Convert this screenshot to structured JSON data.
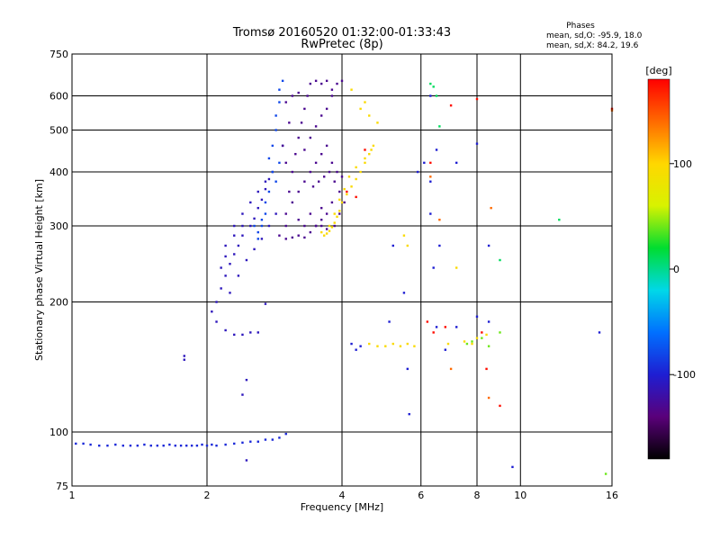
{
  "chart_data": {
    "type": "scatter",
    "title": "Tromsø 20160520 01:32:00-01:33:43",
    "subtitle": "RwPretec (8p)",
    "xlabel": "Frequency [MHz]",
    "ylabel": "Stationary phase Virtual Height [km]",
    "x_scale": "log",
    "y_scale": "log",
    "xlim": [
      1,
      16
    ],
    "ylim": [
      75,
      750
    ],
    "x_ticks": [
      1,
      2,
      4,
      6,
      8,
      10,
      16
    ],
    "y_ticks": [
      75,
      100,
      200,
      300,
      400,
      500,
      600,
      750
    ],
    "grid": true,
    "stats": {
      "heading": "Phases",
      "line_o": "mean, sd,O: -95.9, 18.0",
      "line_x": "mean, sd,X:  84.2, 19.6"
    },
    "colorbar": {
      "label": "[deg]",
      "range": [
        -180,
        180
      ],
      "ticks": [
        100,
        0,
        -100
      ],
      "tick_labels": [
        "100",
        "0",
        "-100"
      ]
    },
    "color_stops": [
      "#000000",
      "#5a007a",
      "#1e1ed2",
      "#0070ff",
      "#00d8e8",
      "#00dd30",
      "#d8f200",
      "#ffd700",
      "#ff6a00",
      "#ff0000"
    ],
    "series": [
      {
        "phase": -95,
        "points": [
          [
            1.02,
            94
          ],
          [
            1.06,
            94
          ],
          [
            1.1,
            93.5
          ],
          [
            1.15,
            93
          ],
          [
            1.2,
            93
          ],
          [
            1.25,
            93.5
          ],
          [
            1.3,
            93
          ],
          [
            1.35,
            93
          ],
          [
            1.4,
            93
          ],
          [
            1.45,
            93.5
          ],
          [
            1.5,
            93
          ],
          [
            1.55,
            93
          ],
          [
            1.6,
            93
          ],
          [
            1.65,
            93.5
          ],
          [
            1.7,
            93
          ],
          [
            1.75,
            93
          ],
          [
            1.8,
            93
          ],
          [
            1.85,
            93
          ],
          [
            1.9,
            93
          ],
          [
            1.95,
            93.5
          ],
          [
            2.0,
            93
          ],
          [
            2.05,
            93.5
          ],
          [
            2.1,
            93
          ],
          [
            2.2,
            93.5
          ],
          [
            2.3,
            94
          ],
          [
            2.4,
            94.5
          ],
          [
            2.5,
            95
          ],
          [
            2.6,
            95
          ],
          [
            2.7,
            96
          ],
          [
            2.8,
            96
          ],
          [
            2.9,
            97
          ],
          [
            3.0,
            99
          ]
        ]
      },
      {
        "phase": -110,
        "points": [
          [
            2.05,
            190
          ],
          [
            2.1,
            200
          ],
          [
            2.15,
            215
          ],
          [
            2.2,
            230
          ],
          [
            2.25,
            245
          ],
          [
            2.3,
            258
          ],
          [
            2.35,
            270
          ],
          [
            2.4,
            285
          ],
          [
            2.5,
            300
          ],
          [
            2.55,
            312
          ],
          [
            2.6,
            330
          ],
          [
            2.65,
            345
          ],
          [
            2.7,
            365
          ],
          [
            2.75,
            385
          ],
          [
            2.8,
            400
          ],
          [
            2.3,
            300
          ],
          [
            2.4,
            320
          ],
          [
            2.5,
            340
          ],
          [
            2.6,
            360
          ],
          [
            2.7,
            380
          ],
          [
            2.2,
            270
          ],
          [
            2.3,
            285
          ],
          [
            2.4,
            300
          ],
          [
            2.15,
            240
          ],
          [
            2.2,
            255
          ],
          [
            2.25,
            210
          ],
          [
            2.35,
            230
          ],
          [
            2.45,
            250
          ],
          [
            2.55,
            265
          ],
          [
            2.65,
            280
          ],
          [
            2.75,
            300
          ],
          [
            2.85,
            320
          ],
          [
            2.1,
            180
          ],
          [
            2.2,
            172
          ],
          [
            2.3,
            168
          ],
          [
            2.4,
            168
          ],
          [
            2.5,
            170
          ],
          [
            2.6,
            170
          ],
          [
            2.7,
            198
          ],
          [
            1.78,
            150
          ],
          [
            1.78,
            147
          ],
          [
            2.45,
            132
          ],
          [
            2.4,
            122
          ],
          [
            2.45,
            86
          ]
        ]
      },
      {
        "phase": -80,
        "points": [
          [
            2.75,
            430
          ],
          [
            2.8,
            460
          ],
          [
            2.85,
            500
          ],
          [
            2.85,
            540
          ],
          [
            2.9,
            580
          ],
          [
            2.9,
            620
          ],
          [
            2.95,
            650
          ],
          [
            2.8,
            400
          ],
          [
            2.75,
            360
          ],
          [
            2.7,
            340
          ],
          [
            2.65,
            310
          ],
          [
            2.6,
            290
          ],
          [
            2.55,
            300
          ],
          [
            2.85,
            380
          ],
          [
            2.9,
            420
          ],
          [
            2.95,
            460
          ],
          [
            2.7,
            320
          ],
          [
            2.65,
            300
          ],
          [
            2.6,
            280
          ]
        ]
      },
      {
        "phase": -130,
        "points": [
          [
            2.9,
            285
          ],
          [
            3.0,
            280
          ],
          [
            3.1,
            282
          ],
          [
            3.2,
            285
          ],
          [
            3.3,
            282
          ],
          [
            3.4,
            290
          ],
          [
            3.5,
            300
          ],
          [
            3.6,
            300
          ],
          [
            3.7,
            295
          ],
          [
            3.0,
            300
          ],
          [
            3.2,
            310
          ],
          [
            3.4,
            320
          ],
          [
            3.6,
            330
          ],
          [
            3.8,
            340
          ],
          [
            3.0,
            320
          ],
          [
            3.1,
            340
          ],
          [
            3.2,
            360
          ],
          [
            3.3,
            380
          ],
          [
            3.4,
            400
          ],
          [
            3.5,
            420
          ],
          [
            3.6,
            440
          ],
          [
            3.7,
            460
          ],
          [
            3.8,
            420
          ],
          [
            3.9,
            400
          ],
          [
            4.0,
            390
          ],
          [
            3.05,
            360
          ],
          [
            3.1,
            400
          ],
          [
            3.15,
            440
          ],
          [
            3.2,
            480
          ],
          [
            3.25,
            520
          ],
          [
            3.3,
            560
          ],
          [
            3.35,
            600
          ],
          [
            3.4,
            640
          ],
          [
            3.5,
            650
          ],
          [
            3.6,
            640
          ],
          [
            3.7,
            650
          ],
          [
            3.8,
            620
          ],
          [
            3.9,
            640
          ],
          [
            4.0,
            650
          ],
          [
            3.3,
            450
          ],
          [
            3.4,
            480
          ],
          [
            3.5,
            510
          ],
          [
            3.6,
            540
          ],
          [
            3.7,
            560
          ],
          [
            3.8,
            600
          ],
          [
            3.45,
            370
          ],
          [
            3.55,
            380
          ],
          [
            3.65,
            390
          ],
          [
            3.75,
            400
          ],
          [
            3.85,
            380
          ],
          [
            3.95,
            360
          ],
          [
            3.1,
            600
          ],
          [
            3.2,
            610
          ],
          [
            3.0,
            580
          ],
          [
            3.05,
            520
          ],
          [
            2.95,
            460
          ],
          [
            3.0,
            420
          ],
          [
            3.5,
            300
          ],
          [
            3.6,
            310
          ],
          [
            3.3,
            300
          ],
          [
            3.7,
            320
          ],
          [
            3.85,
            300
          ],
          [
            3.95,
            320
          ],
          [
            4.05,
            340
          ]
        ]
      },
      {
        "phase": 95,
        "points": [
          [
            3.6,
            290
          ],
          [
            3.65,
            285
          ],
          [
            3.7,
            288
          ],
          [
            3.75,
            292
          ],
          [
            3.8,
            298
          ],
          [
            3.85,
            305
          ],
          [
            3.9,
            315
          ],
          [
            3.95,
            325
          ],
          [
            4.0,
            340
          ],
          [
            4.1,
            355
          ],
          [
            4.2,
            370
          ],
          [
            4.3,
            385
          ],
          [
            4.4,
            400
          ],
          [
            4.5,
            420
          ],
          [
            4.6,
            440
          ],
          [
            4.7,
            460
          ],
          [
            3.75,
            300
          ],
          [
            3.85,
            320
          ],
          [
            3.95,
            345
          ],
          [
            4.05,
            365
          ],
          [
            4.15,
            390
          ],
          [
            4.3,
            410
          ],
          [
            4.5,
            430
          ],
          [
            4.65,
            450
          ],
          [
            4.4,
            560
          ],
          [
            4.5,
            580
          ],
          [
            4.6,
            540
          ],
          [
            4.8,
            520
          ],
          [
            4.2,
            620
          ],
          [
            4.6,
            160
          ],
          [
            4.8,
            158
          ],
          [
            5.0,
            158
          ],
          [
            5.2,
            160
          ],
          [
            5.4,
            158
          ],
          [
            5.6,
            160
          ],
          [
            5.8,
            158
          ],
          [
            6.9,
            160
          ],
          [
            7.5,
            162
          ],
          [
            8.0,
            165
          ],
          [
            8.4,
            168
          ],
          [
            7.8,
            160
          ],
          [
            7.2,
            240
          ],
          [
            5.5,
            285
          ],
          [
            5.6,
            270
          ]
        ]
      },
      {
        "phase": 40,
        "points": [
          [
            7.6,
            160
          ],
          [
            7.8,
            162
          ],
          [
            8.2,
            165
          ],
          [
            8.5,
            158
          ],
          [
            9.0,
            170
          ],
          [
            15.5,
            80
          ]
        ]
      },
      {
        "phase": 10,
        "points": [
          [
            6.3,
            640
          ],
          [
            6.4,
            630
          ],
          [
            6.5,
            600
          ],
          [
            9.0,
            250
          ],
          [
            12.2,
            310
          ],
          [
            6.6,
            510
          ]
        ]
      },
      {
        "phase": -100,
        "points": [
          [
            4.2,
            160
          ],
          [
            4.3,
            155
          ],
          [
            4.4,
            158
          ],
          [
            5.1,
            180
          ],
          [
            5.2,
            270
          ],
          [
            5.5,
            210
          ],
          [
            5.6,
            140
          ],
          [
            5.65,
            110
          ],
          [
            6.3,
            600
          ],
          [
            6.5,
            450
          ],
          [
            6.1,
            420
          ],
          [
            6.3,
            380
          ],
          [
            6.3,
            320
          ],
          [
            5.9,
            400
          ],
          [
            6.6,
            270
          ],
          [
            6.4,
            240
          ],
          [
            6.5,
            175
          ],
          [
            7.2,
            175
          ],
          [
            8.0,
            185
          ],
          [
            8.5,
            180
          ],
          [
            8.0,
            465
          ],
          [
            8.5,
            270
          ],
          [
            9.6,
            83
          ],
          [
            15.0,
            170
          ],
          [
            6.8,
            155
          ],
          [
            7.2,
            420
          ]
        ]
      },
      {
        "phase": 175,
        "points": [
          [
            6.2,
            180
          ],
          [
            6.3,
            420
          ],
          [
            6.4,
            170
          ],
          [
            6.8,
            175
          ],
          [
            7.0,
            570
          ],
          [
            8.0,
            590
          ],
          [
            8.2,
            170
          ],
          [
            8.4,
            140
          ],
          [
            9.0,
            115
          ],
          [
            4.5,
            450
          ],
          [
            4.1,
            360
          ],
          [
            4.3,
            350
          ],
          [
            16.0,
            560
          ]
        ]
      },
      {
        "phase": 140,
        "points": [
          [
            6.3,
            390
          ],
          [
            6.6,
            310
          ],
          [
            7.0,
            140
          ],
          [
            8.5,
            120
          ],
          [
            8.6,
            330
          ],
          [
            16.0,
            555
          ]
        ]
      }
    ]
  }
}
